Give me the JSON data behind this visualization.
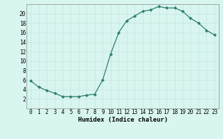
{
  "x": [
    0,
    1,
    2,
    3,
    4,
    5,
    6,
    7,
    8,
    9,
    10,
    11,
    12,
    13,
    14,
    15,
    16,
    17,
    18,
    19,
    20,
    21,
    22,
    23
  ],
  "y": [
    5.8,
    4.5,
    3.8,
    3.2,
    2.5,
    2.5,
    2.5,
    2.8,
    3.0,
    6.0,
    11.5,
    16.0,
    18.5,
    19.5,
    20.5,
    20.8,
    21.5,
    21.2,
    21.2,
    20.5,
    19.0,
    18.0,
    16.5,
    15.5
  ],
  "line_color": "#2e7d6e",
  "marker_color": "#2e7d6e",
  "bg_color": "#d8f5f0",
  "grid_color": "#c8e8e0",
  "xlabel": "Humidex (Indice chaleur)",
  "xlabel_fontsize": 6.5,
  "tick_fontsize": 5.5,
  "ylim": [
    0,
    22
  ],
  "xlim": [
    -0.5,
    23.5
  ],
  "yticks": [
    2,
    4,
    6,
    8,
    10,
    12,
    14,
    16,
    18,
    20
  ],
  "xticks": [
    0,
    1,
    2,
    3,
    4,
    5,
    6,
    7,
    8,
    9,
    10,
    11,
    12,
    13,
    14,
    15,
    16,
    17,
    18,
    19,
    20,
    21,
    22,
    23
  ]
}
